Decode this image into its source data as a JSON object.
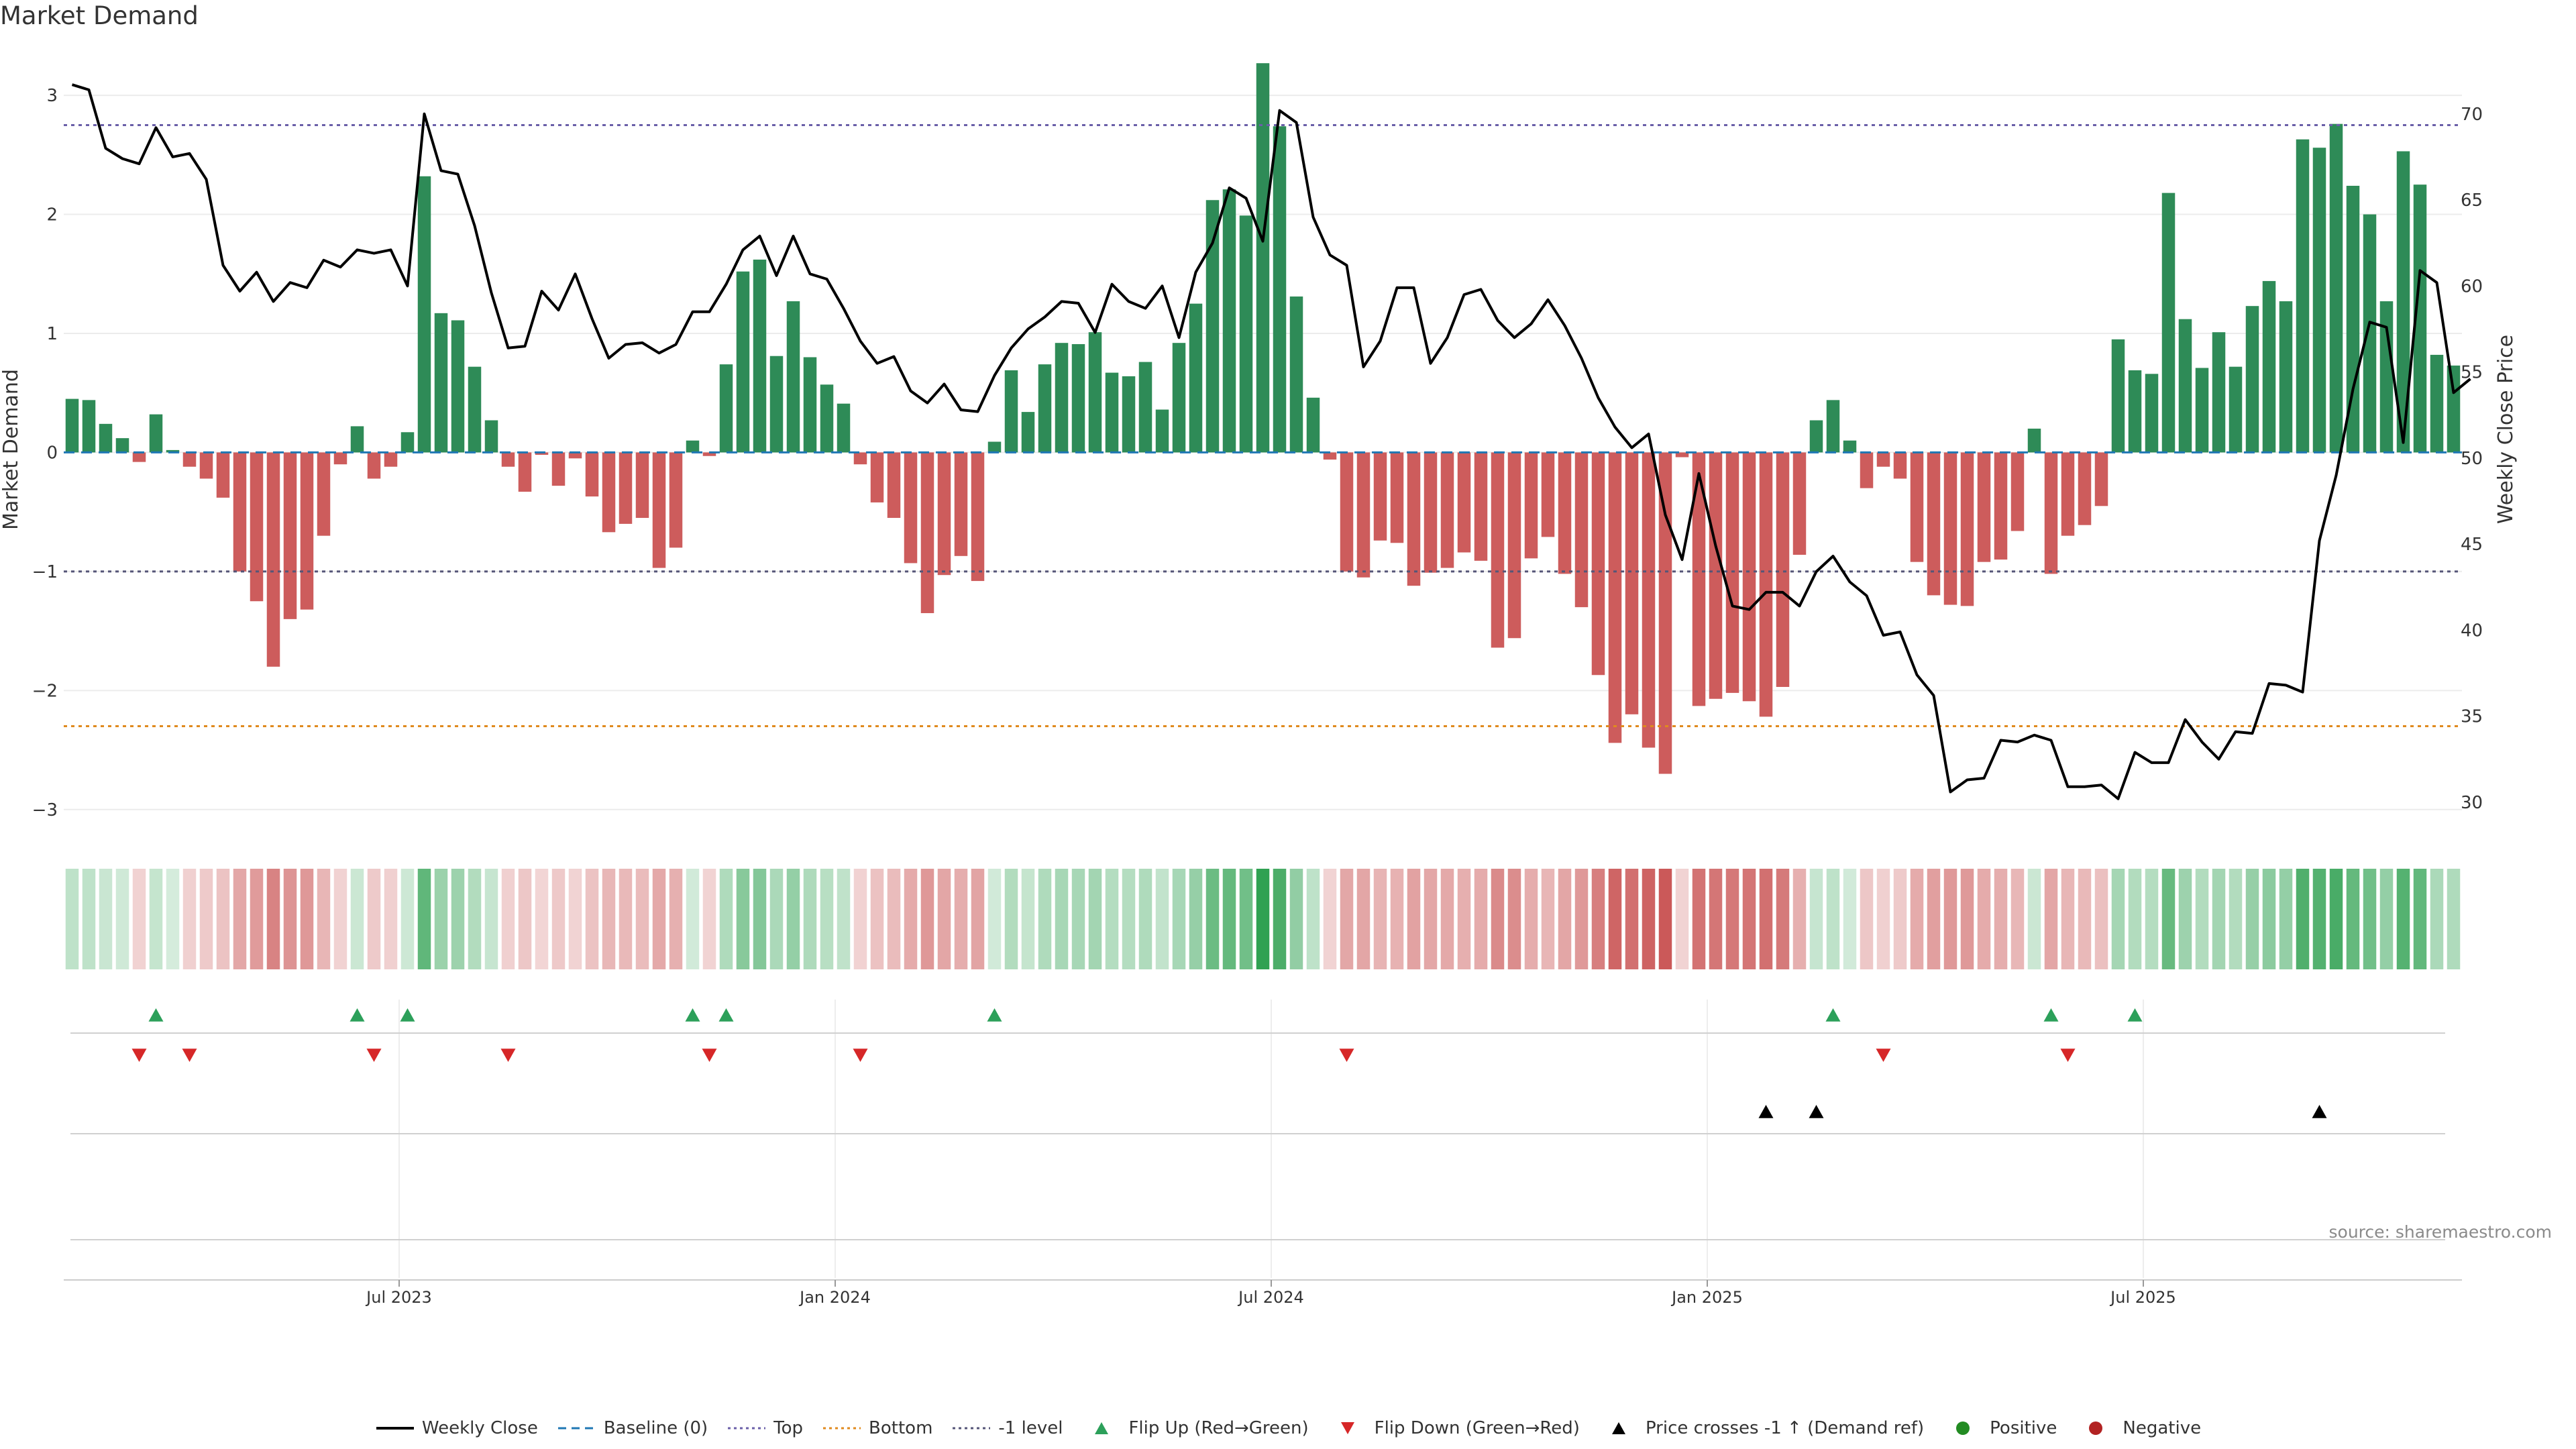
{
  "chart_data": {
    "type": "bar",
    "title": "Market Demand",
    "ylabel": "Market Demand",
    "y2label": "Weekly Close Price",
    "ylim": [
      -3.3,
      3.35
    ],
    "y2lim": [
      27.5,
      73.5
    ],
    "yticks": [
      3,
      2,
      1,
      0,
      -1,
      -2,
      -3
    ],
    "ytick_labels": [
      "3",
      "2",
      "1",
      "0",
      "−1",
      "−2",
      "−3"
    ],
    "y2ticks": [
      70,
      65,
      60,
      55,
      50,
      45,
      40,
      35,
      30
    ],
    "y2tick_labels": [
      "70",
      "65",
      "60",
      "55",
      "50",
      "45",
      "40",
      "35",
      "30"
    ],
    "reference_lines": {
      "top": 2.75,
      "bottom": -2.3,
      "minus_one": -1
    },
    "xtick_labels": [
      "Jul 2023",
      "Jan 2024",
      "Jul 2024",
      "Jan 2025",
      "Jul 2025"
    ],
    "xtick_weeks": [
      20,
      46,
      72,
      98,
      124
    ],
    "series": [
      {
        "name": "Market Demand",
        "values": [
          0.45,
          0.44,
          0.24,
          0.12,
          -0.08,
          0.32,
          0.02,
          -0.12,
          -0.22,
          -0.38,
          -1.0,
          -1.25,
          -1.8,
          -1.4,
          -1.32,
          -0.7,
          -0.1,
          0.22,
          -0.22,
          -0.12,
          0.17,
          2.32,
          1.17,
          1.11,
          0.72,
          0.27,
          -0.12,
          -0.33,
          -0.02,
          -0.28,
          -0.05,
          -0.37,
          -0.67,
          -0.6,
          -0.55,
          -0.97,
          -0.8,
          0.1,
          -0.03,
          0.74,
          1.52,
          1.62,
          0.81,
          1.27,
          0.8,
          0.57,
          0.41,
          -0.1,
          -0.42,
          -0.55,
          -0.93,
          -1.35,
          -1.03,
          -0.87,
          -1.08,
          0.09,
          0.69,
          0.34,
          0.74,
          0.92,
          0.91,
          1.01,
          0.67,
          0.64,
          0.76,
          0.36,
          0.92,
          1.25,
          2.12,
          2.21,
          1.99,
          3.27,
          2.74,
          1.31,
          0.46,
          -0.06,
          -1.0,
          -1.05,
          -0.74,
          -0.76,
          -1.12,
          -1.01,
          -0.97,
          -0.84,
          -0.91,
          -1.64,
          -1.56,
          -0.89,
          -0.71,
          -1.02,
          -1.3,
          -1.87,
          -2.44,
          -2.2,
          -2.48,
          -2.7,
          -0.04,
          -2.13,
          -2.07,
          -2.02,
          -2.09,
          -2.22,
          -1.97,
          -0.86,
          0.27,
          0.44,
          0.1,
          -0.3,
          -0.12,
          -0.22,
          -0.92,
          -1.2,
          -1.28,
          -1.29,
          -0.92,
          -0.9,
          -0.66,
          0.2,
          -1.02,
          -0.7,
          -0.61,
          -0.45,
          0.95,
          0.69,
          0.66,
          2.18,
          1.12,
          0.71,
          1.01,
          0.72,
          1.23,
          1.44,
          1.27,
          2.63,
          2.56,
          2.76,
          2.24,
          2.0,
          1.27,
          2.53,
          2.25,
          0.82,
          0.73
        ]
      },
      {
        "name": "Weekly Close",
        "values": [
          71.7,
          71.4,
          68.0,
          67.4,
          67.1,
          69.2,
          67.5,
          67.7,
          66.2,
          61.2,
          59.7,
          60.8,
          59.1,
          60.2,
          59.9,
          61.5,
          61.1,
          62.1,
          61.9,
          62.1,
          60.0,
          70.0,
          66.7,
          66.5,
          63.5,
          59.6,
          56.4,
          56.5,
          59.7,
          58.6,
          60.7,
          58.1,
          55.8,
          56.6,
          56.7,
          56.1,
          56.6,
          58.5,
          58.5,
          60.1,
          62.1,
          62.9,
          60.6,
          62.9,
          60.7,
          60.4,
          58.7,
          56.8,
          55.5,
          55.9,
          53.9,
          53.2,
          54.3,
          52.8,
          52.7,
          54.8,
          56.4,
          57.5,
          58.2,
          59.1,
          59.0,
          57.3,
          60.1,
          59.1,
          58.7,
          60.0,
          57.0,
          60.8,
          62.5,
          65.7,
          65.1,
          62.6,
          70.2,
          69.5,
          64.0,
          61.8,
          61.2,
          55.3,
          56.8,
          59.9,
          59.9,
          55.5,
          57.0,
          59.5,
          59.8,
          58.0,
          57.0,
          57.8,
          59.2,
          57.7,
          55.8,
          53.5,
          51.8,
          50.6,
          51.4,
          46.7,
          44.1,
          49.1,
          44.9,
          41.4,
          41.2,
          42.2,
          42.2,
          41.4,
          43.4,
          44.3,
          42.8,
          42.0,
          39.7,
          39.9,
          37.4,
          36.2,
          30.6,
          31.3,
          31.4,
          33.6,
          33.5,
          33.9,
          33.6,
          30.9,
          30.9,
          31.0,
          30.2,
          32.9,
          32.3,
          32.3,
          34.8,
          33.5,
          32.5,
          34.1,
          34.0,
          36.9,
          36.8,
          36.4,
          45.2,
          49.0,
          54.0,
          57.9,
          57.6,
          50.9,
          60.9,
          60.2,
          53.8,
          54.6
        ]
      }
    ],
    "markers": {
      "flip_up_weeks": [
        5,
        17,
        20,
        37,
        39,
        55,
        105,
        118,
        123
      ],
      "flip_down_weeks": [
        4,
        7,
        18,
        26,
        38,
        47,
        76,
        108,
        119
      ],
      "price_cross_weeks": [
        101,
        104,
        134
      ]
    },
    "legend": [
      {
        "label": "Weekly Close",
        "kind": "line",
        "color": "#000000"
      },
      {
        "label": "Baseline (0)",
        "kind": "dash",
        "color": "#1f77b4"
      },
      {
        "label": "Top",
        "kind": "dot",
        "color": "#6a5fa8"
      },
      {
        "label": "Bottom",
        "kind": "dot",
        "color": "#e08a1e"
      },
      {
        "label": "-1 level",
        "kind": "dot",
        "color": "#555577"
      },
      {
        "label": "Flip Up (Red→Green)",
        "kind": "tri-up",
        "color": "#2ca05a"
      },
      {
        "label": "Flip Down (Green→Red)",
        "kind": "tri-down",
        "color": "#d62728"
      },
      {
        "label": "Price crosses -1 ↑ (Demand ref)",
        "kind": "tri-up",
        "color": "#000000"
      },
      {
        "label": "Positive",
        "kind": "circle",
        "color": "#228b22"
      },
      {
        "label": "Negative",
        "kind": "circle",
        "color": "#b22222"
      }
    ],
    "source": "source: sharemaestro.com"
  },
  "colors": {
    "positive": "#2e8b57",
    "negative": "#cd5c5c",
    "price": "#000000"
  }
}
